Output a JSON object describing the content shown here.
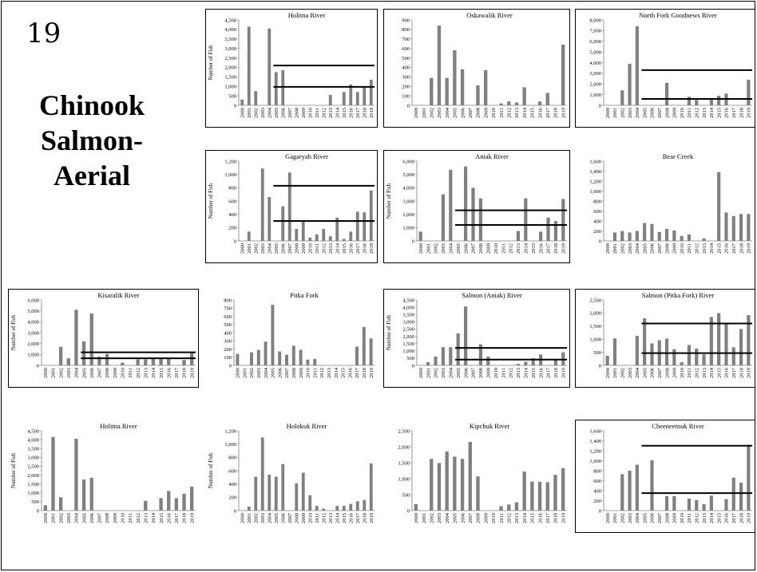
{
  "slide": {
    "number": "19",
    "title_lines": [
      "Chinook",
      "Salmon-",
      "Aerial"
    ]
  },
  "colors": {
    "bar": "#808080",
    "reference_line": "#000000",
    "frame": "#000000"
  },
  "chart_data": [
    {
      "type": "bar",
      "title": "Holitna River",
      "ylabel": "Number of Fish",
      "ylim": [
        0,
        4500
      ],
      "yticks": [
        0,
        500,
        1000,
        1500,
        2000,
        2500,
        3000,
        3500,
        4000,
        4500
      ],
      "categories": [
        "2000",
        "2001",
        "2002",
        "2003",
        "2004",
        "2005",
        "2006",
        "2007",
        "2008",
        "2009",
        "2010",
        "2011",
        "2012",
        "2013",
        "2014",
        "2015",
        "2016",
        "2017",
        "2018",
        "2019"
      ],
      "values": [
        300,
        4150,
        750,
        0,
        4050,
        1750,
        1850,
        0,
        0,
        0,
        0,
        0,
        0,
        550,
        0,
        700,
        1100,
        700,
        950,
        1350
      ],
      "reference_lines": [
        {
          "value": 2100,
          "from": "2005",
          "to": "2019"
        },
        {
          "value": 970,
          "from": "2005",
          "to": "2019"
        }
      ]
    },
    {
      "type": "bar",
      "title": "Oskawalik River",
      "ylim": [
        0,
        900
      ],
      "yticks": [
        0,
        100,
        200,
        300,
        400,
        500,
        600,
        700,
        800,
        900
      ],
      "categories": [
        "2000",
        "2001",
        "2002",
        "2003",
        "2004",
        "2005",
        "2006",
        "2007",
        "2008",
        "2009",
        "2010",
        "2011",
        "2012",
        "2013",
        "2014",
        "2015",
        "2016",
        "2017",
        "2018",
        "2019"
      ],
      "values": [
        0,
        0,
        290,
        840,
        290,
        580,
        380,
        0,
        210,
        370,
        0,
        20,
        40,
        30,
        190,
        0,
        40,
        130,
        0,
        640
      ],
      "reference_lines": []
    },
    {
      "type": "bar",
      "title": "North Fork Goodnews River",
      "ylim": [
        0,
        8000
      ],
      "yticks": [
        0,
        1000,
        2000,
        3000,
        4000,
        5000,
        6000,
        7000,
        8000
      ],
      "categories": [
        "2000",
        "2001",
        "2002",
        "2003",
        "2004",
        "2005",
        "2006",
        "2007",
        "2008",
        "2009",
        "2010",
        "2011",
        "2012",
        "2013",
        "2014",
        "2015",
        "2016",
        "2017",
        "2018",
        "2019"
      ],
      "values": [
        0,
        0,
        1400,
        3900,
        7400,
        0,
        0,
        0,
        2100,
        0,
        0,
        800,
        500,
        0,
        600,
        900,
        1100,
        0,
        0,
        2400
      ],
      "reference_lines": [
        {
          "value": 3300,
          "from": "2005",
          "to": "2019"
        },
        {
          "value": 600,
          "from": "2005",
          "to": "2019"
        }
      ]
    },
    {
      "type": "bar",
      "title": "Gagaryah River",
      "ylabel": "Number of Fish",
      "ylim": [
        0,
        1200
      ],
      "yticks": [
        0,
        200,
        400,
        600,
        800,
        1000,
        1200
      ],
      "categories": [
        "2000",
        "2001",
        "2002",
        "2003",
        "2004",
        "2005",
        "2006",
        "2007",
        "2008",
        "2009",
        "2010",
        "2011",
        "2012",
        "2013",
        "2014",
        "2015",
        "2016",
        "2017",
        "2018",
        "2019"
      ],
      "values": [
        0,
        140,
        0,
        1090,
        660,
        0,
        520,
        1030,
        180,
        290,
        50,
        100,
        180,
        70,
        350,
        30,
        140,
        440,
        430,
        760
      ],
      "reference_lines": [
        {
          "value": 830,
          "from": "2005",
          "to": "2019"
        },
        {
          "value": 300,
          "from": "2005",
          "to": "2019"
        }
      ]
    },
    {
      "type": "bar",
      "title": "Aniak River",
      "ylabel": "Number of Fish",
      "ylim": [
        0,
        6000
      ],
      "yticks": [
        0,
        1000,
        2000,
        3000,
        4000,
        5000,
        6000
      ],
      "categories": [
        "2000",
        "2001",
        "2002",
        "2003",
        "2004",
        "2005",
        "2006",
        "2007",
        "2008",
        "2009",
        "2010",
        "2011",
        "2012",
        "2013",
        "2014",
        "2015",
        "2016",
        "2017",
        "2018",
        "2019"
      ],
      "values": [
        700,
        0,
        0,
        3500,
        5350,
        0,
        5600,
        4000,
        3200,
        0,
        0,
        0,
        0,
        750,
        3200,
        0,
        700,
        1750,
        1500,
        3150
      ],
      "reference_lines": [
        {
          "value": 2300,
          "from": "2005",
          "to": "2019"
        },
        {
          "value": 1200,
          "from": "2005",
          "to": "2019"
        }
      ]
    },
    {
      "type": "bar",
      "title": "Bear Creek",
      "ylim": [
        0,
        1600
      ],
      "yticks": [
        0,
        200,
        400,
        600,
        800,
        1000,
        1200,
        1400,
        1600
      ],
      "categories": [
        "2000",
        "2001",
        "2002",
        "2003",
        "2004",
        "2005",
        "2006",
        "2007",
        "2008",
        "2009",
        "2010",
        "2011",
        "2012",
        "2013",
        "2014",
        "2015",
        "2016",
        "2017",
        "2018",
        "2019"
      ],
      "values": [
        0,
        170,
        200,
        170,
        200,
        360,
        340,
        180,
        240,
        210,
        100,
        130,
        0,
        50,
        0,
        1380,
        570,
        500,
        540,
        540
      ],
      "reference_lines": []
    },
    {
      "type": "bar",
      "title": "Kisaralik River",
      "ylabel": "Number of Fish",
      "ylim": [
        0,
        6000
      ],
      "yticks": [
        0,
        1000,
        2000,
        3000,
        4000,
        5000,
        6000
      ],
      "categories": [
        "2000",
        "2001",
        "2002",
        "2003",
        "2004",
        "2005",
        "2006",
        "2007",
        "2008",
        "2009",
        "2010",
        "2011",
        "2012",
        "2013",
        "2014",
        "2015",
        "2016",
        "2017",
        "2018",
        "2019"
      ],
      "values": [
        0,
        0,
        1700,
        650,
        5100,
        2200,
        4750,
        800,
        1050,
        0,
        250,
        0,
        550,
        550,
        600,
        650,
        600,
        0,
        500,
        1150
      ],
      "reference_lines": [
        {
          "value": 1200,
          "from": "2005",
          "to": "2019"
        },
        {
          "value": 650,
          "from": "2005",
          "to": "2019"
        }
      ]
    },
    {
      "type": "bar",
      "title": "Pitka Fork",
      "ylim": [
        0,
        800
      ],
      "yticks": [
        0,
        100,
        200,
        300,
        400,
        500,
        600,
        700,
        800
      ],
      "categories": [
        "2000",
        "2001",
        "2002",
        "2003",
        "2004",
        "2005",
        "2006",
        "2007",
        "2008",
        "2009",
        "2010",
        "2011",
        "2012",
        "2013",
        "2014",
        "2015",
        "2016",
        "2017",
        "2018",
        "2019"
      ],
      "values": [
        140,
        0,
        160,
        190,
        290,
        740,
        170,
        130,
        240,
        190,
        70,
        80,
        0,
        0,
        0,
        0,
        0,
        230,
        470,
        330
      ],
      "reference_lines": []
    },
    {
      "type": "bar",
      "title": "Salmon (Aniak) River",
      "ylabel": "Number of Fish",
      "ylim": [
        0,
        4500
      ],
      "yticks": [
        0,
        500,
        1000,
        1500,
        2000,
        2500,
        3000,
        3500,
        4000,
        4500
      ],
      "categories": [
        "2000",
        "2001",
        "2002",
        "2003",
        "2004",
        "2005",
        "2006",
        "2007",
        "2008",
        "2009",
        "2010",
        "2011",
        "2012",
        "2013",
        "2014",
        "2015",
        "2016",
        "2017",
        "2018",
        "2019"
      ],
      "values": [
        0,
        220,
        600,
        1250,
        1250,
        2200,
        4050,
        0,
        1450,
        600,
        0,
        0,
        0,
        100,
        250,
        500,
        750,
        0,
        400,
        900
      ],
      "reference_lines": [
        {
          "value": 1200,
          "from": "2005",
          "to": "2019"
        },
        {
          "value": 400,
          "from": "2005",
          "to": "2019"
        }
      ]
    },
    {
      "type": "bar",
      "title": "Salmon (Pitka Fork) River",
      "ylim": [
        0,
        2500
      ],
      "yticks": [
        0,
        500,
        1000,
        1500,
        2000,
        2500
      ],
      "categories": [
        "2000",
        "2001",
        "2002",
        "2003",
        "2004",
        "2005",
        "2006",
        "2007",
        "2008",
        "2009",
        "2010",
        "2011",
        "2012",
        "2013",
        "2014",
        "2015",
        "2016",
        "2017",
        "2018",
        "2019"
      ],
      "values": [
        370,
        1030,
        0,
        0,
        1130,
        1800,
        840,
        960,
        1020,
        620,
        120,
        780,
        640,
        420,
        1850,
        2000,
        1600,
        690,
        1390,
        1920
      ],
      "reference_lines": [
        {
          "value": 1600,
          "from": "2005",
          "to": "2019"
        },
        {
          "value": 470,
          "from": "2005",
          "to": "2019"
        }
      ]
    },
    {
      "type": "bar",
      "title": "Holitna River",
      "ylabel": "Number of Fish",
      "ylim": [
        0,
        4500
      ],
      "yticks": [
        0,
        500,
        1000,
        1500,
        2000,
        2500,
        3000,
        3500,
        4000,
        4500
      ],
      "categories": [
        "2000",
        "2001",
        "2002",
        "2003",
        "2004",
        "2005",
        "2006",
        "2007",
        "2008",
        "2009",
        "2010",
        "2011",
        "2012",
        "2013",
        "2014",
        "2015",
        "2016",
        "2017",
        "2018",
        "2019"
      ],
      "values": [
        300,
        4150,
        750,
        0,
        4050,
        1750,
        1850,
        0,
        0,
        0,
        0,
        0,
        0,
        550,
        0,
        700,
        1100,
        700,
        950,
        1350
      ],
      "reference_lines": []
    },
    {
      "type": "bar",
      "title": "Holokuk River",
      "ylabel": "Number of Fish",
      "ylim": [
        0,
        1200
      ],
      "yticks": [
        0,
        200,
        400,
        600,
        800,
        1000,
        1200
      ],
      "categories": [
        "2000",
        "2001",
        "2002",
        "2003",
        "2004",
        "2005",
        "2006",
        "2007",
        "2008",
        "2009",
        "2010",
        "2011",
        "2012",
        "2013",
        "2014",
        "2015",
        "2016",
        "2017",
        "2018",
        "2019"
      ],
      "values": [
        0,
        60,
        510,
        1100,
        540,
        510,
        700,
        0,
        410,
        570,
        230,
        70,
        30,
        0,
        70,
        70,
        100,
        140,
        160,
        710
      ],
      "reference_lines": []
    },
    {
      "type": "bar",
      "title": "Kipchuk River",
      "ylim": [
        0,
        2500
      ],
      "yticks": [
        0,
        500,
        1000,
        1500,
        2000,
        2500
      ],
      "categories": [
        "2000",
        "2001",
        "2002",
        "2003",
        "2004",
        "2005",
        "2006",
        "2007",
        "2008",
        "2009",
        "2010",
        "2011",
        "2012",
        "2013",
        "2014",
        "2015",
        "2016",
        "2017",
        "2018",
        "2019"
      ],
      "values": [
        200,
        0,
        1620,
        1490,
        1850,
        1690,
        1620,
        2150,
        1070,
        0,
        0,
        140,
        190,
        260,
        1220,
        910,
        900,
        890,
        1120,
        1330
      ],
      "reference_lines": []
    },
    {
      "type": "bar",
      "title": "Cheeneetnuk River",
      "ylim": [
        0,
        1600
      ],
      "yticks": [
        0,
        200,
        400,
        600,
        800,
        1000,
        1200,
        1400,
        1600
      ],
      "categories": [
        "2000",
        "2001",
        "2002",
        "2003",
        "2004",
        "2005",
        "2006",
        "2007",
        "2008",
        "2009",
        "2010",
        "2011",
        "2012",
        "2013",
        "2014",
        "2015",
        "2016",
        "2017",
        "2018",
        "2019"
      ],
      "values": [
        0,
        0,
        730,
        800,
        920,
        0,
        1010,
        0,
        290,
        290,
        0,
        240,
        210,
        130,
        300,
        0,
        230,
        660,
        560,
        1320
      ],
      "reference_lines": [
        {
          "value": 1300,
          "from": "2005",
          "to": "2019"
        },
        {
          "value": 350,
          "from": "2005",
          "to": "2019"
        }
      ]
    }
  ]
}
